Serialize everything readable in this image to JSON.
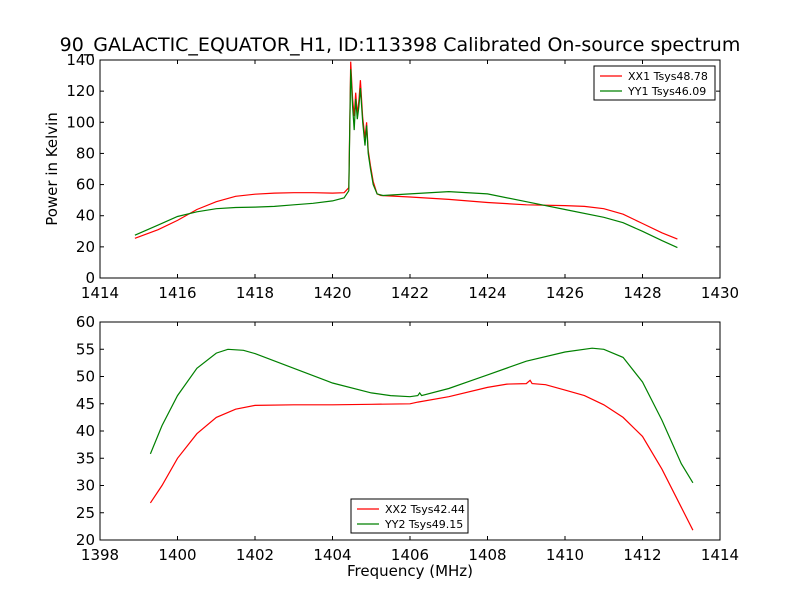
{
  "title": "90_GALACTIC_EQUATOR_H1, ID:113398 Calibrated On-source spectrum",
  "colors": {
    "red": "#ff0000",
    "green": "#008000"
  },
  "chart_data": [
    {
      "type": "line",
      "ylabel": "Power in Kelvin",
      "xlabel": "",
      "xlim": [
        1414,
        1430
      ],
      "ylim": [
        0,
        140
      ],
      "xticks": [
        1414,
        1416,
        1418,
        1420,
        1422,
        1424,
        1426,
        1428,
        1430
      ],
      "yticks": [
        0,
        20,
        40,
        60,
        80,
        100,
        120,
        140
      ],
      "legend_position": "upper-right",
      "series": [
        {
          "name": "XX1 Tsys48.78",
          "color": "#ff0000",
          "points": [
            [
              1414.9,
              25.5
            ],
            [
              1415.5,
              31
            ],
            [
              1416,
              37
            ],
            [
              1416.5,
              44
            ],
            [
              1417,
              49
            ],
            [
              1417.5,
              52.5
            ],
            [
              1418,
              53.8
            ],
            [
              1418.5,
              54.5
            ],
            [
              1419,
              54.8
            ],
            [
              1419.5,
              54.8
            ],
            [
              1420,
              54.5
            ],
            [
              1420.3,
              54.8
            ],
            [
              1420.42,
              58
            ],
            [
              1420.47,
              139
            ],
            [
              1420.52,
              115
            ],
            [
              1420.56,
              104
            ],
            [
              1420.6,
              119
            ],
            [
              1420.64,
              105
            ],
            [
              1420.68,
              114
            ],
            [
              1420.72,
              127
            ],
            [
              1420.78,
              103
            ],
            [
              1420.84,
              90
            ],
            [
              1420.88,
              100
            ],
            [
              1420.92,
              82
            ],
            [
              1420.98,
              72
            ],
            [
              1421.05,
              62
            ],
            [
              1421.15,
              54
            ],
            [
              1421.25,
              53
            ],
            [
              1422,
              52
            ],
            [
              1423,
              50.5
            ],
            [
              1424,
              48.5
            ],
            [
              1425,
              47
            ],
            [
              1426,
              46.5
            ],
            [
              1426.5,
              46
            ],
            [
              1427,
              44.5
            ],
            [
              1427.5,
              41
            ],
            [
              1428,
              35
            ],
            [
              1428.5,
              29
            ],
            [
              1428.9,
              25
            ]
          ]
        },
        {
          "name": "YY1 Tsys46.09",
          "color": "#008000",
          "points": [
            [
              1414.9,
              27.5
            ],
            [
              1415.5,
              34
            ],
            [
              1416,
              39.5
            ],
            [
              1416.5,
              42.5
            ],
            [
              1417,
              44.5
            ],
            [
              1417.5,
              45.3
            ],
            [
              1418,
              45.5
            ],
            [
              1418.5,
              46
            ],
            [
              1419,
              47
            ],
            [
              1419.5,
              48
            ],
            [
              1420,
              49.5
            ],
            [
              1420.3,
              51.5
            ],
            [
              1420.42,
              56
            ],
            [
              1420.47,
              134
            ],
            [
              1420.52,
              110
            ],
            [
              1420.56,
              95
            ],
            [
              1420.6,
              115
            ],
            [
              1420.64,
              102
            ],
            [
              1420.68,
              110
            ],
            [
              1420.72,
              122
            ],
            [
              1420.78,
              100
            ],
            [
              1420.84,
              85
            ],
            [
              1420.88,
              98
            ],
            [
              1420.92,
              80
            ],
            [
              1420.98,
              70
            ],
            [
              1421.05,
              60
            ],
            [
              1421.15,
              54
            ],
            [
              1421.3,
              53
            ],
            [
              1422,
              54
            ],
            [
              1423,
              55.5
            ],
            [
              1424,
              54
            ],
            [
              1425,
              49
            ],
            [
              1426,
              44
            ],
            [
              1427,
              39
            ],
            [
              1427.5,
              35.5
            ],
            [
              1428,
              30
            ],
            [
              1428.5,
              24
            ],
            [
              1428.9,
              19.5
            ]
          ]
        }
      ]
    },
    {
      "type": "line",
      "ylabel": "",
      "xlabel": "Frequency (MHz)",
      "xlim": [
        1398,
        1414
      ],
      "ylim": [
        20,
        60
      ],
      "xticks": [
        1398,
        1400,
        1402,
        1404,
        1406,
        1408,
        1410,
        1412,
        1414
      ],
      "yticks": [
        20,
        25,
        30,
        35,
        40,
        45,
        50,
        55,
        60
      ],
      "legend_position": "lower-center",
      "series": [
        {
          "name": "XX2 Tsys42.44",
          "color": "#ff0000",
          "points": [
            [
              1399.3,
              26.8
            ],
            [
              1399.6,
              30
            ],
            [
              1400,
              35
            ],
            [
              1400.5,
              39.5
            ],
            [
              1401,
              42.5
            ],
            [
              1401.5,
              44
            ],
            [
              1402,
              44.7
            ],
            [
              1403,
              44.8
            ],
            [
              1404,
              44.8
            ],
            [
              1405,
              44.9
            ],
            [
              1406,
              45
            ],
            [
              1406.2,
              45.3
            ],
            [
              1407,
              46.3
            ],
            [
              1408,
              48
            ],
            [
              1408.5,
              48.6
            ],
            [
              1409,
              48.7
            ],
            [
              1409.1,
              49.3
            ],
            [
              1409.15,
              48.7
            ],
            [
              1409.5,
              48.5
            ],
            [
              1410,
              47.5
            ],
            [
              1410.5,
              46.5
            ],
            [
              1411,
              44.8
            ],
            [
              1411.5,
              42.5
            ],
            [
              1412,
              39
            ],
            [
              1412.5,
              33
            ],
            [
              1413,
              26
            ],
            [
              1413.3,
              21.8
            ]
          ]
        },
        {
          "name": "YY2 Tsys49.15",
          "color": "#008000",
          "points": [
            [
              1399.3,
              35.8
            ],
            [
              1399.6,
              41
            ],
            [
              1400,
              46.5
            ],
            [
              1400.5,
              51.5
            ],
            [
              1401,
              54.3
            ],
            [
              1401.3,
              55
            ],
            [
              1401.7,
              54.8
            ],
            [
              1402,
              54.2
            ],
            [
              1403,
              51.5
            ],
            [
              1404,
              48.8
            ],
            [
              1405,
              47
            ],
            [
              1405.5,
              46.5
            ],
            [
              1406,
              46.3
            ],
            [
              1406.2,
              46.5
            ],
            [
              1406.25,
              47
            ],
            [
              1406.3,
              46.5
            ],
            [
              1407,
              47.8
            ],
            [
              1408,
              50.3
            ],
            [
              1409,
              52.8
            ],
            [
              1410,
              54.5
            ],
            [
              1410.7,
              55.2
            ],
            [
              1411,
              55
            ],
            [
              1411.5,
              53.5
            ],
            [
              1412,
              49
            ],
            [
              1412.5,
              42
            ],
            [
              1413,
              34
            ],
            [
              1413.3,
              30.5
            ]
          ]
        }
      ]
    }
  ]
}
